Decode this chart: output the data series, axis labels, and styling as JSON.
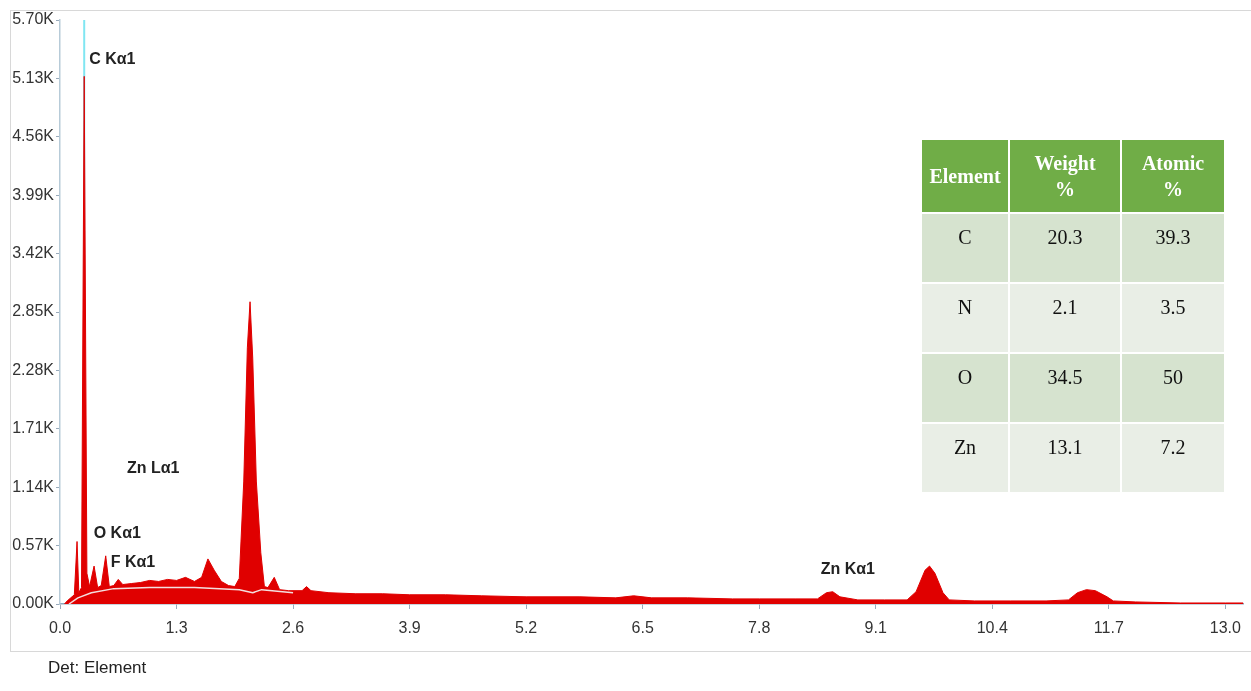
{
  "chart_data": [
    {
      "type": "area",
      "xlim": [
        0,
        13.2
      ],
      "ylim": [
        0,
        5700
      ],
      "xticks": [
        {
          "value": 0,
          "label": "0.0"
        },
        1.3,
        2.6,
        3.9,
        5.2,
        6.5,
        7.8,
        9.1,
        10.4,
        11.7,
        {
          "value": 13,
          "label": "13.0"
        }
      ],
      "yticks": [
        {
          "value": 0,
          "label": "0.00K"
        },
        {
          "value": 570,
          "label": "0.57K"
        },
        {
          "value": 1140,
          "label": "1.14K"
        },
        {
          "value": 1710,
          "label": "1.71K"
        },
        {
          "value": 2280,
          "label": "2.28K"
        },
        {
          "value": 2850,
          "label": "2.85K"
        },
        {
          "value": 3420,
          "label": "3.42K"
        },
        {
          "value": 3990,
          "label": "3.99K"
        },
        {
          "value": 4560,
          "label": "4.56K"
        },
        {
          "value": 5130,
          "label": "5.13K"
        },
        {
          "value": 5700,
          "label": "5.70K"
        }
      ],
      "series": [
        {
          "color": "#e00000",
          "x": [
            0.05,
            0.08,
            0.12,
            0.16,
            0.19,
            0.21,
            0.24,
            0.27,
            0.3,
            0.33,
            0.38,
            0.42,
            0.46,
            0.51,
            0.55,
            0.6,
            0.65,
            0.7,
            0.8,
            0.9,
            1.0,
            1.1,
            1.2,
            1.3,
            1.4,
            1.5,
            1.58,
            1.65,
            1.72,
            1.8,
            1.88,
            1.95,
            2.0,
            2.05,
            2.09,
            2.12,
            2.15,
            2.19,
            2.24,
            2.28,
            2.32,
            2.39,
            2.45,
            2.55,
            2.7,
            2.75,
            2.8,
            3.0,
            3.3,
            3.6,
            3.9,
            4.3,
            4.7,
            5.2,
            5.8,
            6.2,
            6.4,
            6.6,
            7.0,
            7.5,
            7.8,
            8.2,
            8.45,
            8.55,
            8.62,
            8.7,
            8.9,
            9.2,
            9.45,
            9.55,
            9.65,
            9.7,
            9.76,
            9.85,
            9.92,
            10.2,
            10.6,
            11.0,
            11.25,
            11.35,
            11.45,
            11.55,
            11.68,
            11.75,
            12.0,
            12.5,
            13.0,
            13.2
          ],
          "values": [
            0,
            30,
            60,
            90,
            610,
            110,
            160,
            5150,
            300,
            170,
            370,
            160,
            180,
            470,
            170,
            180,
            240,
            190,
            200,
            210,
            230,
            220,
            240,
            230,
            260,
            220,
            260,
            440,
            330,
            220,
            180,
            170,
            250,
            1200,
            2500,
            2950,
            2400,
            1200,
            500,
            170,
            160,
            260,
            140,
            130,
            130,
            170,
            130,
            110,
            100,
            100,
            90,
            90,
            80,
            70,
            70,
            60,
            80,
            60,
            60,
            50,
            50,
            50,
            50,
            110,
            120,
            70,
            40,
            40,
            40,
            120,
            330,
            370,
            300,
            110,
            40,
            30,
            30,
            30,
            40,
            110,
            140,
            130,
            70,
            30,
            20,
            10,
            10,
            10
          ]
        },
        {
          "type": "line",
          "color": "#f4dede",
          "x": [
            0.1,
            0.2,
            0.35,
            0.6,
            1.0,
            1.5,
            2.0,
            2.15,
            2.25,
            2.6
          ],
          "values": [
            0,
            60,
            110,
            150,
            160,
            160,
            140,
            110,
            140,
            110
          ]
        }
      ],
      "ref_lines": [
        {
          "axis": "x",
          "value": 0.27,
          "label": "C Kα1",
          "color": "#80e6f2"
        }
      ],
      "annotations": [
        {
          "text": "O Kα1",
          "x": 0.51,
          "y": 470
        },
        {
          "text": "F Kα1",
          "x": 0.7,
          "y": 190
        },
        "Zn Lα1",
        {
          "text": "Zn Kα1",
          "x": 8.62,
          "y": 120
        },
        "Det: Element"
      ]
    },
    {
      "type": "other",
      "xlabel": "Element",
      "categories": [
        "C",
        "N",
        "O",
        "Zn"
      ],
      "series": [
        {
          "name": "Weight %",
          "colors": [
            "#d6e3cf",
            "#e9eee6",
            "#d6e3cf",
            "#e9eee6"
          ],
          "values": [
            20.3,
            2.1,
            34.5,
            13.1
          ]
        },
        {
          "name": "Atomic %",
          "colors": [
            "#d6e3cf",
            "#e9eee6",
            "#d6e3cf",
            "#e9eee6"
          ],
          "values": [
            39.3,
            3.5,
            50,
            7.2
          ]
        }
      ],
      "data_labels": true
    }
  ]
}
